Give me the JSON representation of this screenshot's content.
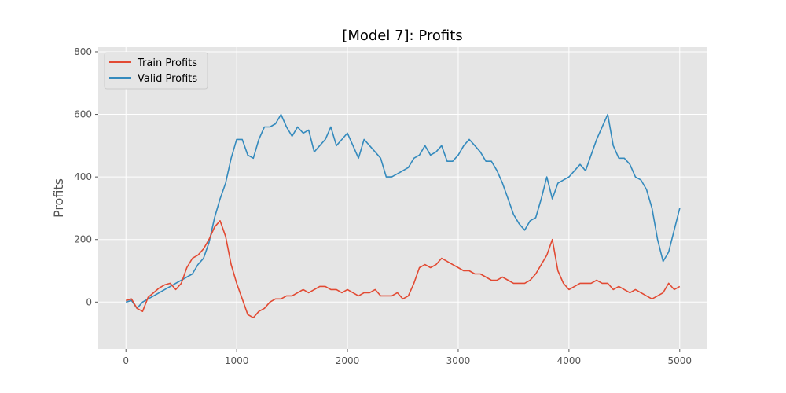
{
  "chart_data": {
    "type": "line",
    "title": "[Model 7]: Profits",
    "xlabel": "",
    "ylabel": "Profits",
    "xlim": [
      -250,
      5250
    ],
    "ylim": [
      -150,
      815
    ],
    "xticks": [
      0,
      1000,
      2000,
      3000,
      4000,
      5000
    ],
    "yticks": [
      0,
      200,
      400,
      600,
      800
    ],
    "grid": true,
    "legend_position": "upper-left",
    "series": [
      {
        "name": "Train Profits",
        "color": "#E24A33",
        "x": [
          0,
          50,
          100,
          150,
          200,
          250,
          300,
          350,
          400,
          450,
          500,
          550,
          600,
          650,
          700,
          750,
          800,
          850,
          900,
          950,
          1000,
          1050,
          1100,
          1150,
          1200,
          1250,
          1300,
          1350,
          1400,
          1450,
          1500,
          1550,
          1600,
          1650,
          1700,
          1750,
          1800,
          1850,
          1900,
          1950,
          2000,
          2050,
          2100,
          2150,
          2200,
          2250,
          2300,
          2350,
          2400,
          2450,
          2500,
          2550,
          2600,
          2650,
          2700,
          2750,
          2800,
          2850,
          2900,
          2950,
          3000,
          3050,
          3100,
          3150,
          3200,
          3250,
          3300,
          3350,
          3400,
          3450,
          3500,
          3550,
          3600,
          3650,
          3700,
          3750,
          3800,
          3850,
          3900,
          3950,
          4000,
          4050,
          4100,
          4150,
          4200,
          4250,
          4300,
          4350,
          4400,
          4450,
          4500,
          4550,
          4600,
          4650,
          4700,
          4750,
          4800,
          4850,
          4900,
          4950,
          5000
        ],
        "values": [
          5,
          10,
          -20,
          -30,
          15,
          30,
          45,
          55,
          60,
          40,
          60,
          110,
          140,
          150,
          170,
          200,
          240,
          260,
          210,
          120,
          60,
          10,
          -40,
          -50,
          -30,
          -20,
          0,
          10,
          10,
          20,
          20,
          30,
          40,
          30,
          40,
          50,
          50,
          40,
          40,
          30,
          40,
          30,
          20,
          30,
          30,
          40,
          20,
          20,
          20,
          30,
          10,
          20,
          60,
          110,
          120,
          110,
          120,
          140,
          130,
          120,
          110,
          100,
          100,
          90,
          90,
          80,
          70,
          70,
          80,
          70,
          60,
          60,
          60,
          70,
          90,
          120,
          150,
          200,
          100,
          60,
          40,
          50,
          60,
          60,
          60,
          70,
          60,
          60,
          40,
          50,
          40,
          30,
          40,
          30,
          20,
          10,
          20,
          30,
          60,
          40,
          50
        ]
      },
      {
        "name": "Valid Profits",
        "color": "#348ABD",
        "x": [
          0,
          50,
          100,
          150,
          200,
          250,
          300,
          350,
          400,
          450,
          500,
          550,
          600,
          650,
          700,
          750,
          800,
          850,
          900,
          950,
          1000,
          1050,
          1100,
          1150,
          1200,
          1250,
          1300,
          1350,
          1400,
          1450,
          1500,
          1550,
          1600,
          1650,
          1700,
          1750,
          1800,
          1850,
          1900,
          1950,
          2000,
          2050,
          2100,
          2150,
          2200,
          2250,
          2300,
          2350,
          2400,
          2450,
          2500,
          2550,
          2600,
          2650,
          2700,
          2750,
          2800,
          2850,
          2900,
          2950,
          3000,
          3050,
          3100,
          3150,
          3200,
          3250,
          3300,
          3350,
          3400,
          3450,
          3500,
          3550,
          3600,
          3650,
          3700,
          3750,
          3800,
          3850,
          3900,
          3950,
          4000,
          4050,
          4100,
          4150,
          4200,
          4250,
          4300,
          4350,
          4400,
          4450,
          4500,
          4550,
          4600,
          4650,
          4700,
          4750,
          4800,
          4850,
          4900,
          4950,
          5000
        ],
        "values": [
          0,
          5,
          -20,
          0,
          10,
          20,
          30,
          40,
          50,
          60,
          70,
          80,
          90,
          120,
          140,
          190,
          270,
          330,
          380,
          460,
          520,
          520,
          470,
          460,
          520,
          560,
          560,
          570,
          600,
          560,
          530,
          560,
          540,
          550,
          480,
          500,
          520,
          560,
          500,
          520,
          540,
          500,
          460,
          520,
          500,
          480,
          460,
          400,
          400,
          410,
          420,
          430,
          460,
          470,
          500,
          470,
          480,
          500,
          450,
          450,
          470,
          500,
          520,
          500,
          480,
          450,
          450,
          420,
          380,
          330,
          280,
          250,
          230,
          260,
          270,
          330,
          400,
          330,
          380,
          390,
          400,
          420,
          440,
          420,
          470,
          520,
          560,
          600,
          500,
          460,
          460,
          440,
          400,
          390,
          360,
          300,
          200,
          130,
          160,
          230,
          300
        ]
      }
    ]
  }
}
